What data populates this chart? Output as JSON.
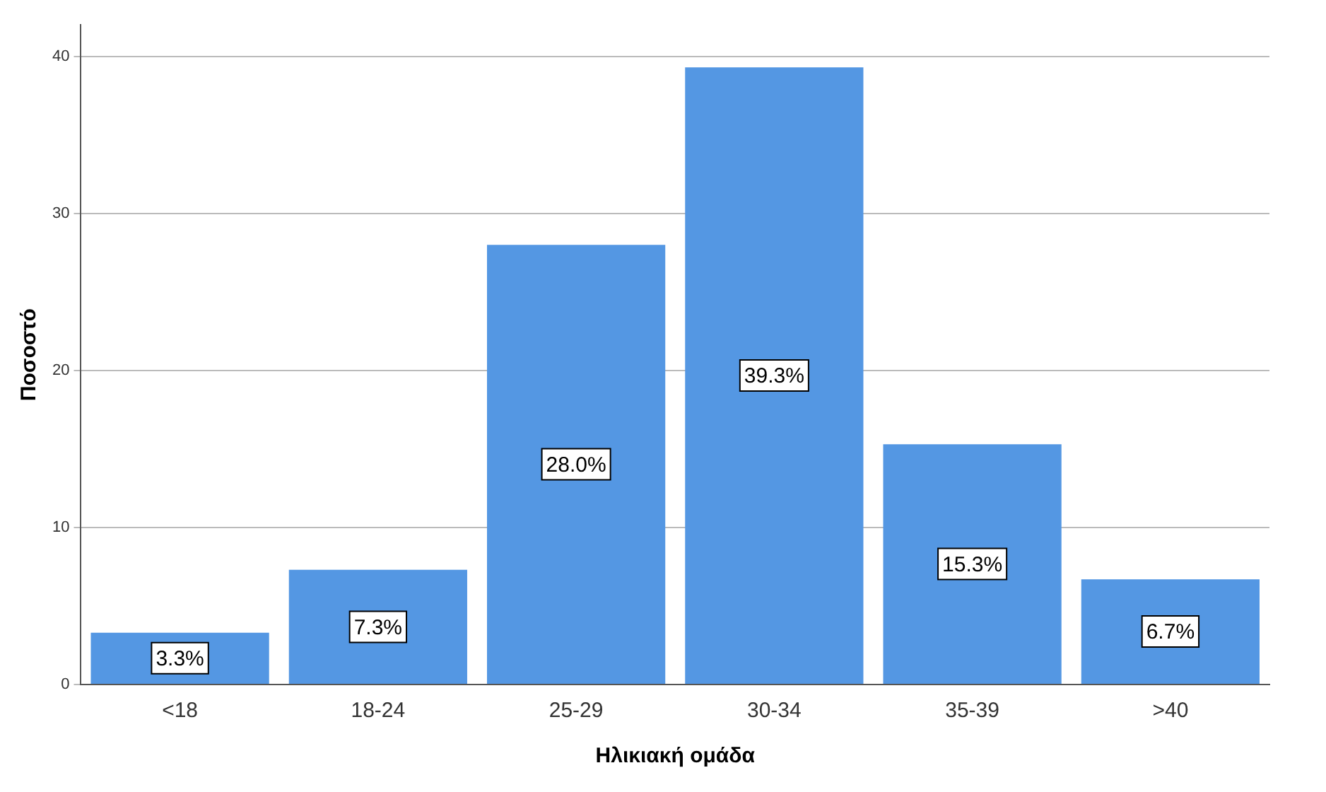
{
  "chart_data": {
    "type": "bar",
    "xlabel": "Ηλικιακή ομάδα",
    "ylabel": "Ποσοστό",
    "categories": [
      "<18",
      "18-24",
      "25-29",
      "30-34",
      "35-39",
      ">40"
    ],
    "values": [
      3.3,
      7.3,
      28.0,
      39.3,
      15.3,
      6.7
    ],
    "value_labels": [
      "3.3%",
      "7.3%",
      "28.0%",
      "39.3%",
      "15.3%",
      "6.7%"
    ],
    "color": "#5497e3",
    "ylim": [
      0,
      42
    ],
    "yticks": [
      0,
      10,
      20,
      30,
      40
    ],
    "grid": "y"
  }
}
